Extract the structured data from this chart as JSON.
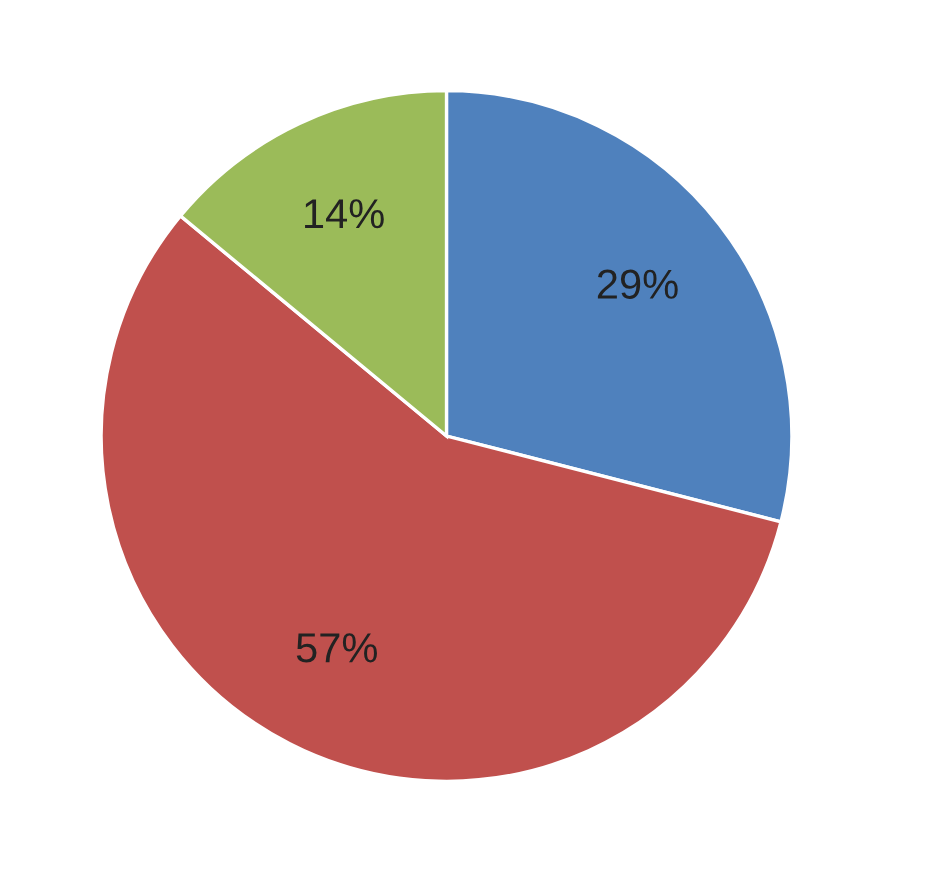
{
  "chart_data": {
    "type": "pie",
    "categories": [
      null,
      null,
      null
    ],
    "values": [
      29,
      57,
      14
    ],
    "colors": [
      "#4f81bd",
      "#c0504d",
      "#9bbb59"
    ],
    "value_labels": [
      "29%",
      "57%",
      "14%"
    ]
  }
}
